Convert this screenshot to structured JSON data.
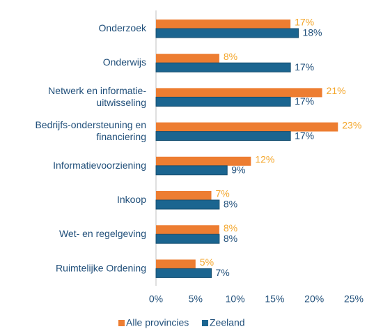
{
  "chart_data": {
    "type": "barh",
    "categories": [
      "Onderzoek",
      "Onderwijs",
      "Netwerk en informatie-\nuitwisseling",
      "Bedrijfs-ondersteuning en\nfinanciering",
      "Informatievoorziening",
      "Inkoop",
      "Wet- en regelgeving",
      "Ruimtelijke Ordening"
    ],
    "series": [
      {
        "name": "Alle provincies",
        "color": "#ed7d31",
        "label_color": "#f4a62a",
        "values": [
          17,
          8,
          21,
          23,
          12,
          7,
          8,
          5
        ],
        "value_labels": [
          "17%",
          "8%",
          "21%",
          "23%",
          "12%",
          "7%",
          "8%",
          "5%"
        ]
      },
      {
        "name": "Zeeland",
        "color": "#1b6590",
        "label_color": "#1f4e79",
        "values": [
          18,
          17,
          17,
          17,
          9,
          8,
          8,
          7
        ],
        "value_labels": [
          "18%",
          "17%",
          "17%",
          "17%",
          "9%",
          "8%",
          "8%",
          "7%"
        ]
      }
    ],
    "xlim": [
      0,
      25
    ],
    "xticks": [
      {
        "value": 0,
        "label": "0%"
      },
      {
        "value": 5,
        "label": "5%"
      },
      {
        "value": 10,
        "label": "10%"
      },
      {
        "value": 15,
        "label": "15%"
      },
      {
        "value": 20,
        "label": "20%"
      },
      {
        "value": 25,
        "label": "25%"
      }
    ],
    "legend": "bottom"
  }
}
